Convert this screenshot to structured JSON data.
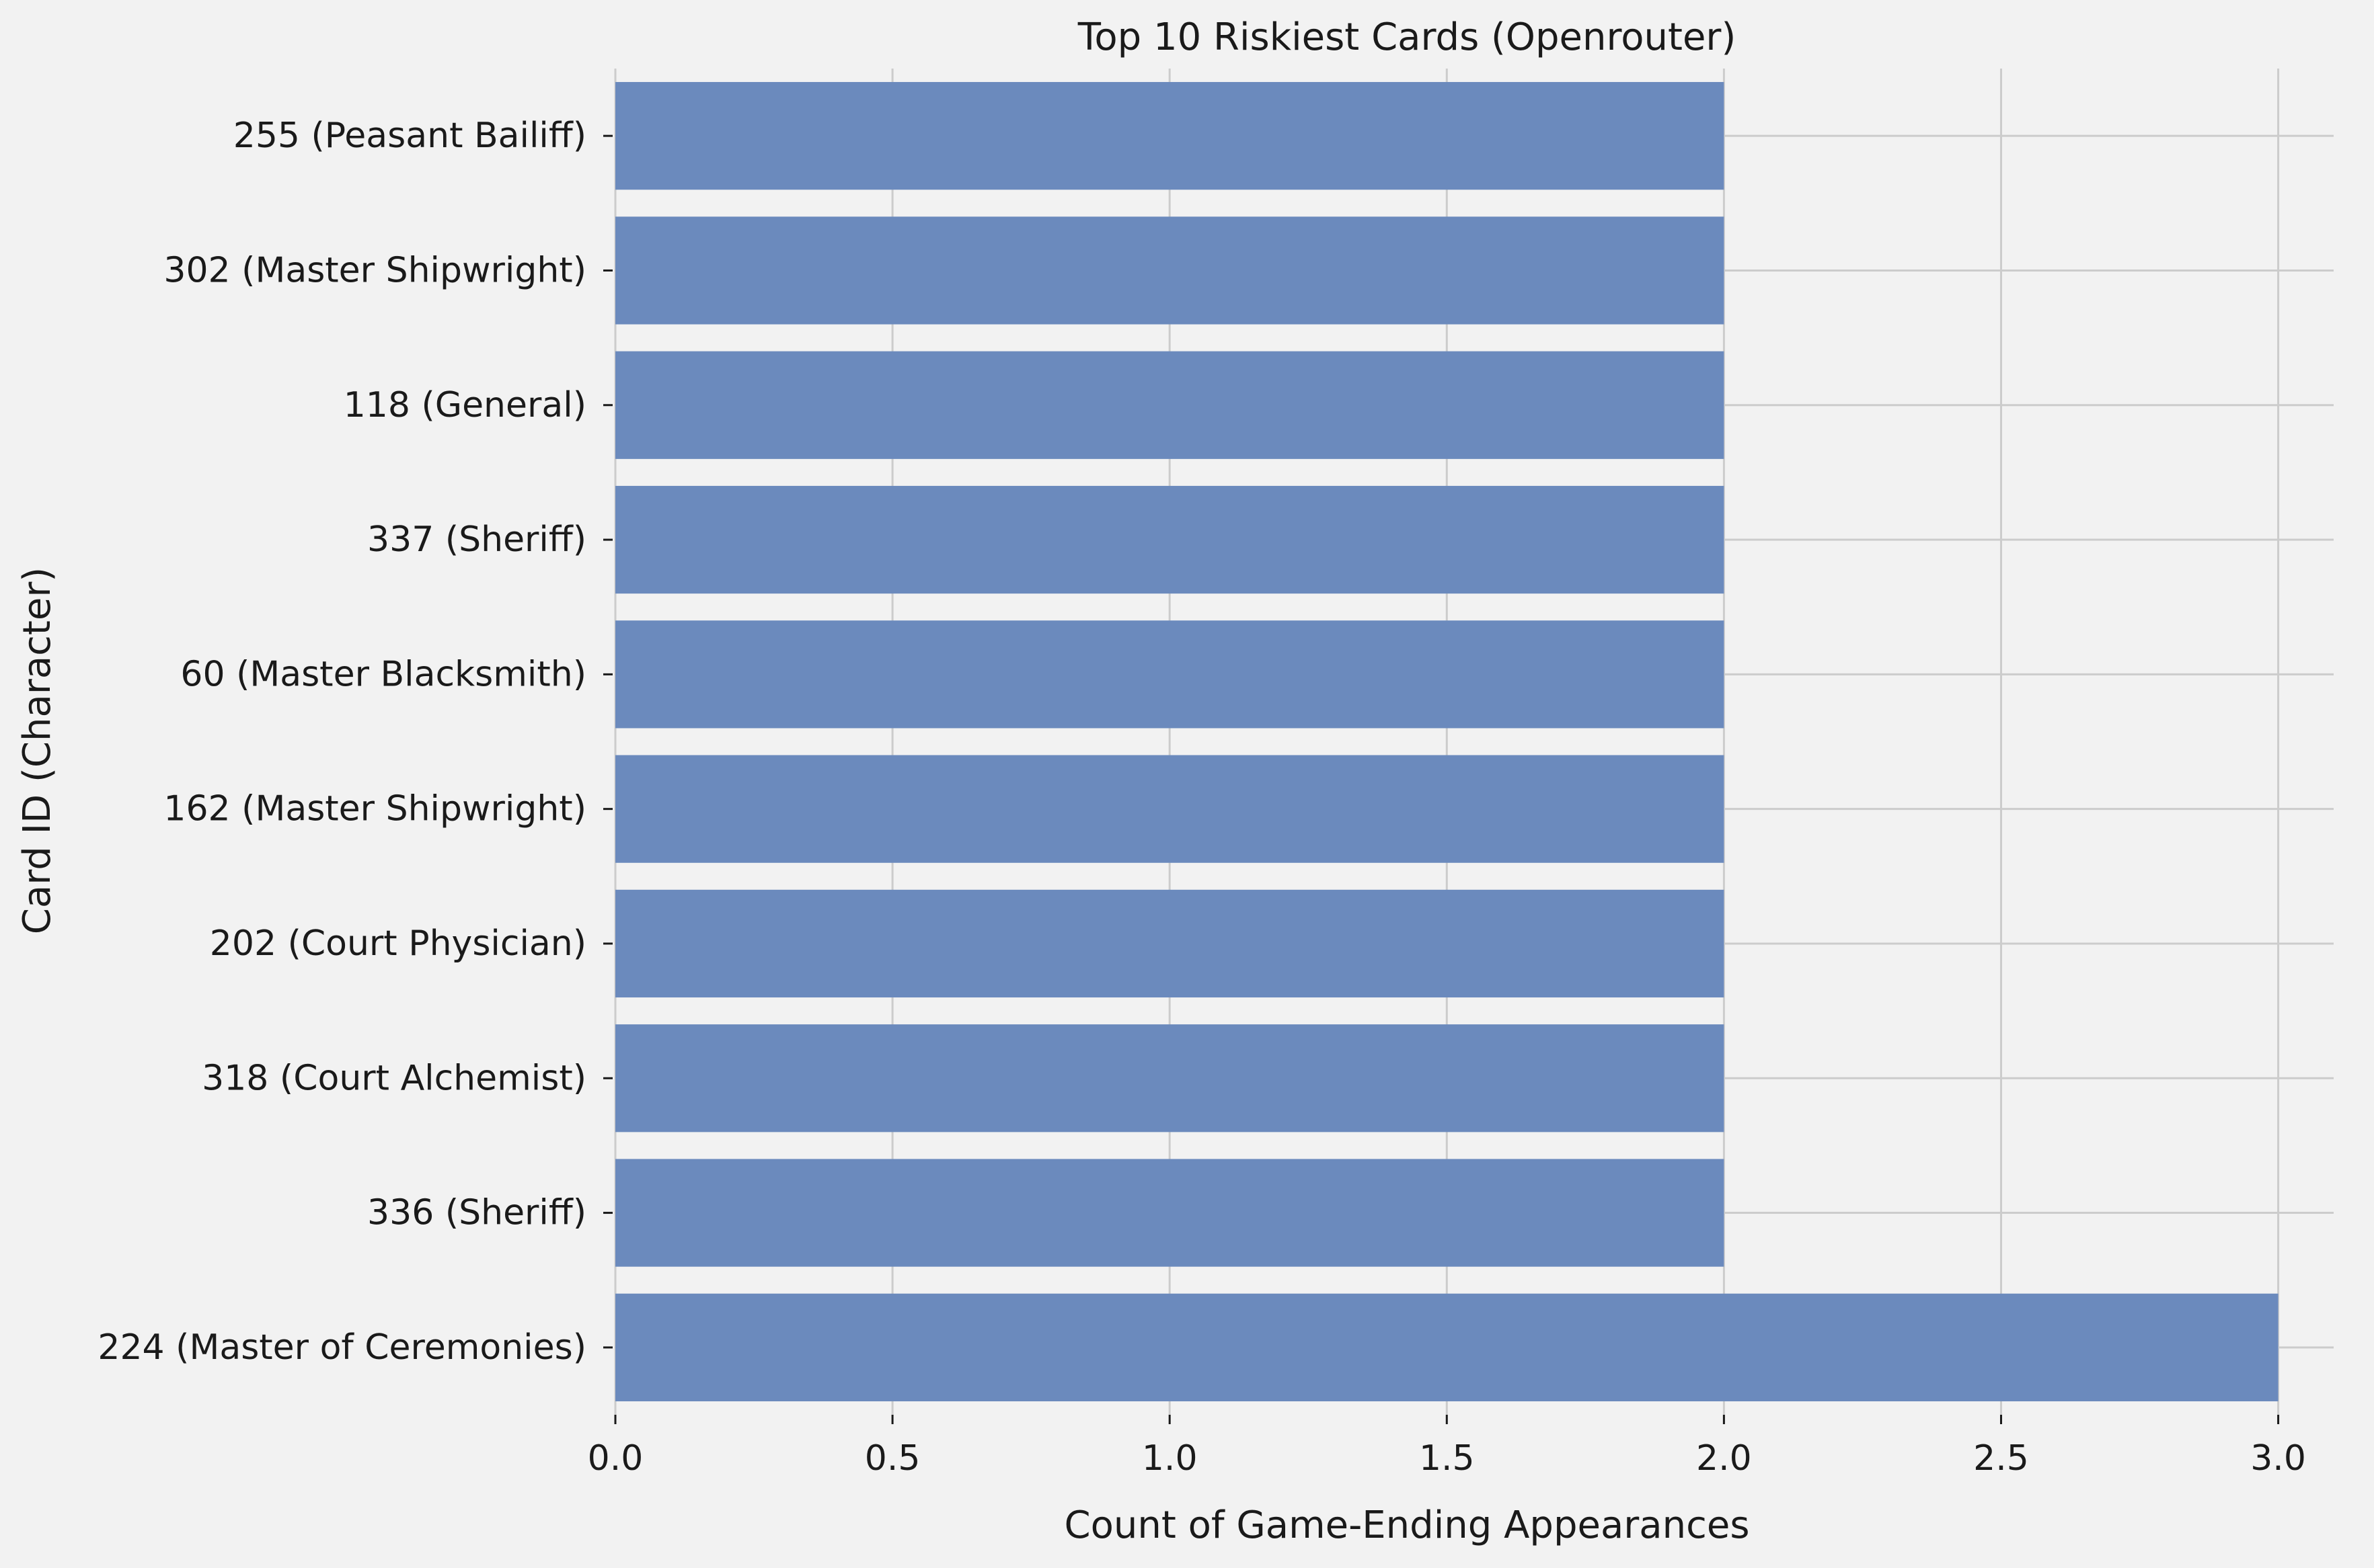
{
  "chart_data": {
    "type": "bar",
    "orientation": "horizontal",
    "title": "Top 10 Riskiest Cards (Openrouter)",
    "xlabel": "Count of Game-Ending Appearances",
    "ylabel": "Card ID (Character)",
    "categories": [
      "255 (Peasant Bailiff)",
      "302 (Master Shipwright)",
      "118 (General)",
      "337 (Sheriff)",
      "60 (Master Blacksmith)",
      "162 (Master Shipwright)",
      "202 (Court Physician)",
      "318 (Court Alchemist)",
      "336 (Sheriff)",
      "224 (Master of Ceremonies)"
    ],
    "values": [
      2,
      2,
      2,
      2,
      2,
      2,
      2,
      2,
      2,
      3
    ],
    "xticks": [
      0.0,
      0.5,
      1.0,
      1.5,
      2.0,
      2.5,
      3.0
    ],
    "xtick_labels": [
      "0.0",
      "0.5",
      "1.0",
      "1.5",
      "2.0",
      "2.5",
      "3.0"
    ],
    "xlim": [
      0,
      3.1
    ],
    "grid": true,
    "bar_color": "#6b8abd",
    "background_color": "#f2f2f2",
    "grid_color": "#cccccc"
  }
}
